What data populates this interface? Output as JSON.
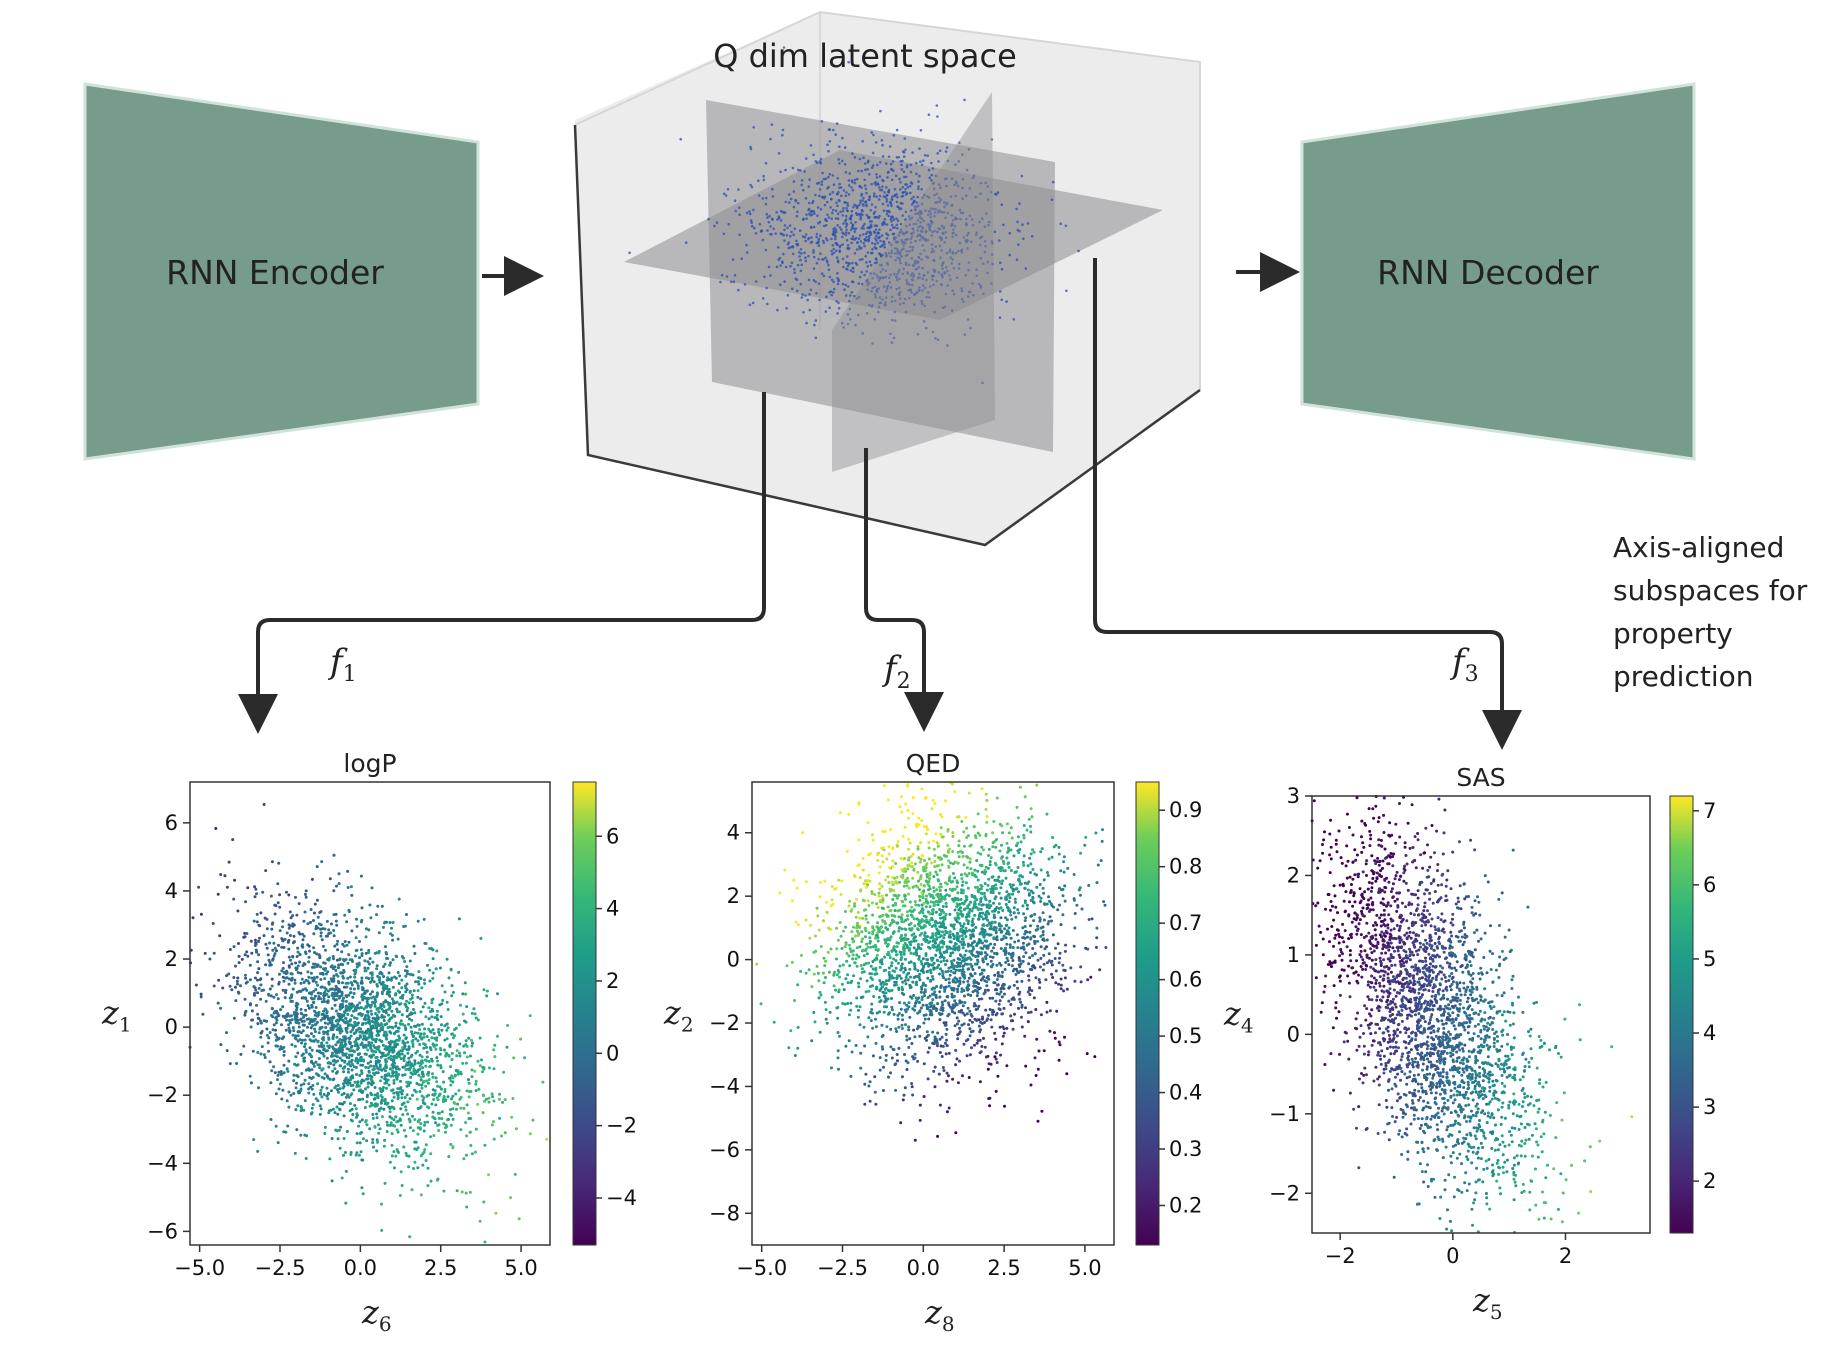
{
  "diagram": {
    "encoder_label": "RNN Encoder",
    "decoder_label": "RNN Decoder",
    "latent_title": "Q dim latent space",
    "side_note": [
      "Axis-aligned",
      "subspaces for",
      "property",
      "prediction"
    ],
    "heads": [
      {
        "base": "f",
        "sub": "1"
      },
      {
        "base": "f",
        "sub": "2"
      },
      {
        "base": "f",
        "sub": "3"
      }
    ],
    "colors": {
      "block_fill": "#779c8b",
      "block_edge": "#cfe3da",
      "latent_point": "#2a4fb0",
      "arrow": "#2b2b2b"
    }
  },
  "chart_data": [
    {
      "type": "scatter",
      "title": "logP",
      "xlabel": {
        "base": "z",
        "sub": "6"
      },
      "ylabel": {
        "base": "z",
        "sub": "1"
      },
      "xlim": [
        -5.3,
        5.9
      ],
      "ylim": [
        -6.4,
        7.2
      ],
      "xticks": [
        -5.0,
        -2.5,
        0.0,
        2.5,
        5.0
      ],
      "xtick_labels": [
        "−5.0",
        "−2.5",
        "0.0",
        "2.5",
        "5.0"
      ],
      "yticks": [
        6,
        4,
        2,
        0,
        -2,
        -4,
        -6
      ],
      "ytick_labels": [
        "6",
        "4",
        "2",
        "0",
        "−2",
        "−4",
        "−6"
      ],
      "colorbar": {
        "min": -5.3,
        "max": 7.5,
        "ticks": [
          6,
          4,
          2,
          0,
          -2,
          -4
        ],
        "tick_labels": [
          "6",
          "4",
          "2",
          "0",
          "−2",
          "−4"
        ]
      },
      "cloud": {
        "cx": 0.0,
        "cy": -0.2,
        "sx": 1.9,
        "sy": 1.85,
        "rho": -0.45,
        "value_mean": 1.5,
        "value_slope_x": 0.55,
        "value_slope_y": -0.35
      }
    },
    {
      "type": "scatter",
      "title": "QED",
      "xlabel": {
        "base": "z",
        "sub": "8"
      },
      "ylabel": {
        "base": "z",
        "sub": "2"
      },
      "xlim": [
        -5.3,
        5.9
      ],
      "ylim": [
        -9.0,
        5.6
      ],
      "xticks": [
        -5.0,
        -2.5,
        0.0,
        2.5,
        5.0
      ],
      "xtick_labels": [
        "−5.0",
        "−2.5",
        "0.0",
        "2.5",
        "5.0"
      ],
      "yticks": [
        4,
        2,
        0,
        -2,
        -4,
        -6,
        -8
      ],
      "ytick_labels": [
        "4",
        "2",
        "0",
        "−2",
        "−4",
        "−6",
        "−8"
      ],
      "colorbar": {
        "min": 0.13,
        "max": 0.95,
        "ticks": [
          0.9,
          0.8,
          0.7,
          0.6,
          0.5,
          0.4,
          0.3,
          0.2
        ],
        "tick_labels": [
          "0.9",
          "0.8",
          "0.7",
          "0.6",
          "0.5",
          "0.4",
          "0.3",
          "0.2"
        ]
      },
      "cloud": {
        "cx": 0.7,
        "cy": 0.6,
        "sx": 1.9,
        "sy": 2.0,
        "rho": 0.1,
        "value_mean": 0.62,
        "value_slope_x": -0.06,
        "value_slope_y": 0.08
      }
    },
    {
      "type": "scatter",
      "title": "SAS",
      "xlabel": {
        "base": "z",
        "sub": "5"
      },
      "ylabel": {
        "base": "z",
        "sub": "4"
      },
      "xlim": [
        -2.5,
        3.5
      ],
      "ylim": [
        -2.5,
        3.0
      ],
      "xticks": [
        -2,
        0,
        2
      ],
      "xtick_labels": [
        "−2",
        "0",
        "2"
      ],
      "yticks": [
        3,
        2,
        1,
        0,
        -1,
        -2
      ],
      "ytick_labels": [
        "3",
        "2",
        "1",
        "0",
        "−1",
        "−2"
      ],
      "colorbar": {
        "min": 1.3,
        "max": 7.2,
        "ticks": [
          7,
          6,
          5,
          4,
          3,
          2
        ],
        "tick_labels": [
          "7",
          "6",
          "5",
          "4",
          "3",
          "2"
        ]
      },
      "cloud": {
        "cx": -0.4,
        "cy": 0.3,
        "sx": 0.95,
        "sy": 1.15,
        "rho": -0.55,
        "value_mean": 3.0,
        "value_slope_x": 0.9,
        "value_slope_y": -0.4
      }
    }
  ]
}
